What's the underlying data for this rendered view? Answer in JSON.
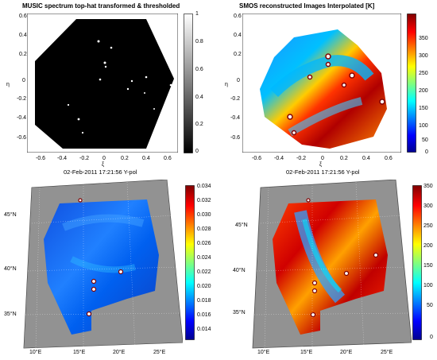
{
  "panels": {
    "tl": {
      "title": "MUSIC spectrum top-hat transformed & thresholded",
      "xticks": [
        "-0.6",
        "-0.4",
        "-0.2",
        "0",
        "0.2",
        "0.4",
        "0.6"
      ],
      "yticks": [
        "0.6",
        "0.4",
        "0.2",
        "0",
        "-0.2",
        "-0.4",
        "-0.6"
      ],
      "xlabel": "ξ",
      "ylabel": "η",
      "colorbar": [
        "1",
        "0.8",
        "0.6",
        "0.4",
        "0.2",
        "0"
      ],
      "date": "02-Feb-2011 17:21:56 Y-pol"
    },
    "tr": {
      "title": "SMOS reconstructed Images Interpolated   [K]",
      "xticks": [
        "-0.6",
        "-0.4",
        "-0.2",
        "0",
        "0.2",
        "0.4",
        "0.6"
      ],
      "yticks": [
        "0.6",
        "0.4",
        "0.2",
        "0",
        "-0.2",
        "-0.4",
        "-0.6"
      ],
      "xlabel": "ξ",
      "ylabel": "η",
      "colorbar": [
        "350",
        "300",
        "250",
        "200",
        "150",
        "100",
        "50",
        "0"
      ],
      "date": "02-Feb-2011 17:21:56 Y-pol"
    },
    "bl": {
      "colorbar": [
        "0.034",
        "0.032",
        "0.030",
        "0.028",
        "0.026",
        "0.024",
        "0.022",
        "0.020",
        "0.018",
        "0.016",
        "0.014"
      ],
      "lat": [
        "45°N",
        "40°N",
        "35°N"
      ],
      "lon": [
        "10°E",
        "15°E",
        "20°E",
        "25°E"
      ]
    },
    "br": {
      "colorbar": [
        "350",
        "300",
        "250",
        "200",
        "150",
        "100",
        "50",
        "0"
      ],
      "lat": [
        "45°N",
        "40°N",
        "35°N"
      ],
      "lon": [
        "10°E",
        "15°E",
        "20°E",
        "25°E"
      ]
    }
  },
  "colors": {
    "black": "#000000",
    "jet_low": "#00008f",
    "jet_high": "#800000",
    "land": "#7f7f7f"
  }
}
